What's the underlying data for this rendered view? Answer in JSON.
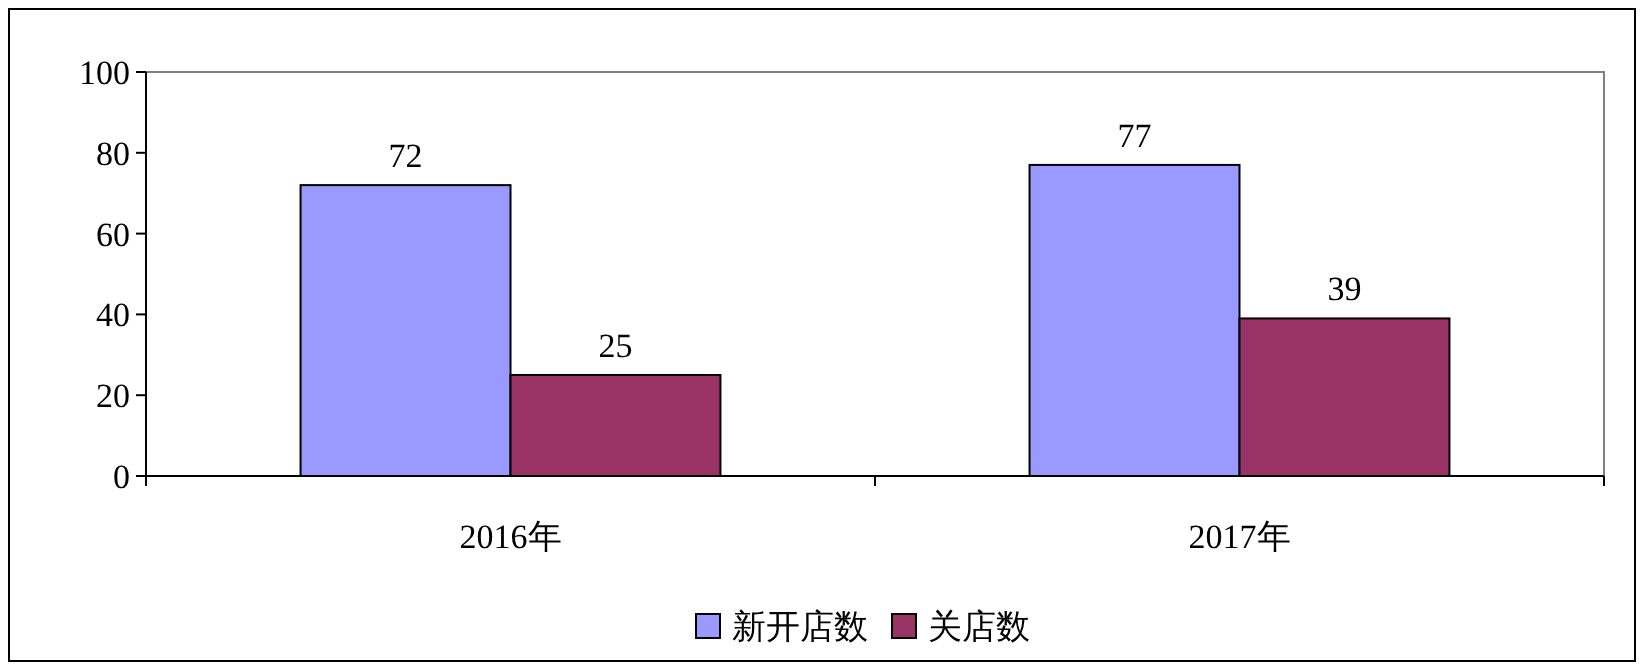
{
  "chart_data": {
    "type": "bar",
    "categories": [
      "2016年",
      "2017年"
    ],
    "series": [
      {
        "name": "新开店数",
        "color": "#9999ff",
        "values": [
          72,
          77
        ]
      },
      {
        "name": "关店数",
        "color": "#993366",
        "values": [
          25,
          39
        ]
      }
    ],
    "ylim": [
      0,
      100
    ],
    "yticks": [
      0,
      20,
      40,
      60,
      80,
      100
    ],
    "data_labels": true,
    "legend": "bottom"
  }
}
